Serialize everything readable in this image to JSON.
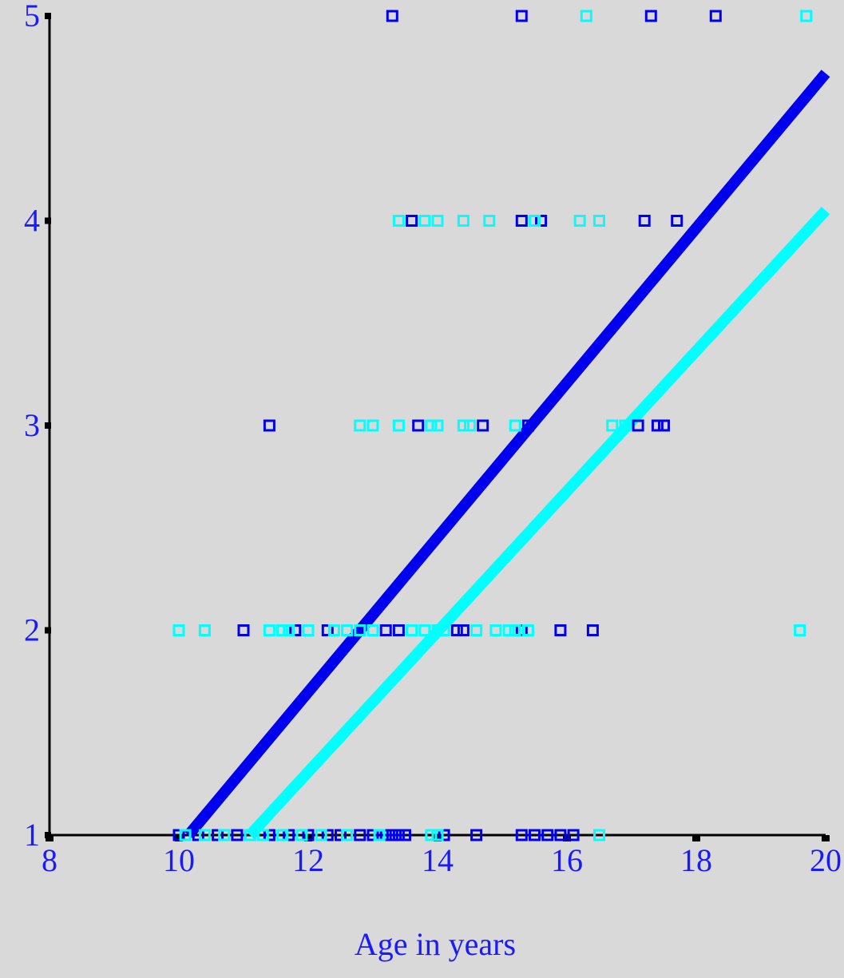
{
  "chart_data": {
    "type": "scatter",
    "title": "",
    "xlabel": "Age in years",
    "ylabel": "",
    "xlim": [
      8,
      20
    ],
    "ylim": [
      1,
      5
    ],
    "x_ticks": [
      8,
      10,
      12,
      14,
      16,
      18,
      20
    ],
    "y_ticks": [
      1,
      2,
      3,
      4,
      5
    ],
    "grid": false,
    "legend": "none",
    "series": [
      {
        "color": "#0000ee",
        "marker": "open-square",
        "points": [
          [
            13.3,
            5
          ],
          [
            15.3,
            5
          ],
          [
            17.3,
            5
          ],
          [
            18.3,
            5
          ],
          [
            13.6,
            4
          ],
          [
            15.3,
            4
          ],
          [
            15.6,
            4
          ],
          [
            17.2,
            4
          ],
          [
            17.7,
            4
          ],
          [
            11.4,
            3
          ],
          [
            13.7,
            3
          ],
          [
            14.7,
            3
          ],
          [
            15.4,
            3
          ],
          [
            17.1,
            3
          ],
          [
            17.4,
            3
          ],
          [
            17.5,
            3
          ],
          [
            11.0,
            2
          ],
          [
            11.8,
            2
          ],
          [
            12.3,
            2
          ],
          [
            13.2,
            2
          ],
          [
            13.4,
            2
          ],
          [
            14.3,
            2
          ],
          [
            14.4,
            2
          ],
          [
            15.3,
            2
          ],
          [
            15.9,
            2
          ],
          [
            16.4,
            2
          ],
          [
            10.0,
            1
          ],
          [
            10.3,
            1
          ],
          [
            10.6,
            1
          ],
          [
            10.9,
            1
          ],
          [
            11.1,
            1
          ],
          [
            11.4,
            1
          ],
          [
            11.7,
            1
          ],
          [
            12.0,
            1
          ],
          [
            12.3,
            1
          ],
          [
            12.5,
            1
          ],
          [
            12.6,
            1
          ],
          [
            12.8,
            1
          ],
          [
            13.0,
            1
          ],
          [
            13.2,
            1
          ],
          [
            13.3,
            1
          ],
          [
            13.4,
            1
          ],
          [
            13.5,
            1
          ],
          [
            14.1,
            1
          ],
          [
            14.6,
            1
          ],
          [
            15.3,
            1
          ],
          [
            15.5,
            1
          ],
          [
            15.7,
            1
          ],
          [
            15.9,
            1
          ],
          [
            16.1,
            1
          ]
        ],
        "fit": [
          [
            10.15,
            1.0
          ],
          [
            20.0,
            4.72
          ]
        ]
      },
      {
        "color": "#00ffff",
        "marker": "open-square",
        "points": [
          [
            16.3,
            5
          ],
          [
            19.7,
            5
          ],
          [
            13.4,
            4
          ],
          [
            13.8,
            4
          ],
          [
            14.0,
            4
          ],
          [
            14.4,
            4
          ],
          [
            14.8,
            4
          ],
          [
            15.5,
            4
          ],
          [
            16.2,
            4
          ],
          [
            16.5,
            4
          ],
          [
            12.8,
            3
          ],
          [
            13.0,
            3
          ],
          [
            13.4,
            3
          ],
          [
            13.9,
            3
          ],
          [
            14.0,
            3
          ],
          [
            14.4,
            3
          ],
          [
            14.5,
            3
          ],
          [
            15.2,
            3
          ],
          [
            16.7,
            3
          ],
          [
            16.9,
            3
          ],
          [
            10.0,
            2
          ],
          [
            10.4,
            2
          ],
          [
            11.4,
            2
          ],
          [
            11.6,
            2
          ],
          [
            11.7,
            2
          ],
          [
            12.0,
            2
          ],
          [
            12.4,
            2
          ],
          [
            12.6,
            2
          ],
          [
            12.8,
            2
          ],
          [
            13.0,
            2
          ],
          [
            13.6,
            2
          ],
          [
            13.8,
            2
          ],
          [
            14.0,
            2
          ],
          [
            14.1,
            2
          ],
          [
            14.6,
            2
          ],
          [
            14.9,
            2
          ],
          [
            15.1,
            2
          ],
          [
            15.2,
            2
          ],
          [
            15.4,
            2
          ],
          [
            19.6,
            2
          ],
          [
            10.1,
            1
          ],
          [
            10.4,
            1
          ],
          [
            10.7,
            1
          ],
          [
            11.1,
            1
          ],
          [
            11.3,
            1
          ],
          [
            11.6,
            1
          ],
          [
            11.9,
            1
          ],
          [
            12.2,
            1
          ],
          [
            12.6,
            1
          ],
          [
            13.1,
            1
          ],
          [
            13.9,
            1
          ],
          [
            14.0,
            1
          ],
          [
            16.5,
            1
          ]
        ],
        "fit": [
          [
            11.1,
            1.0
          ],
          [
            20.0,
            4.05
          ]
        ]
      }
    ]
  }
}
